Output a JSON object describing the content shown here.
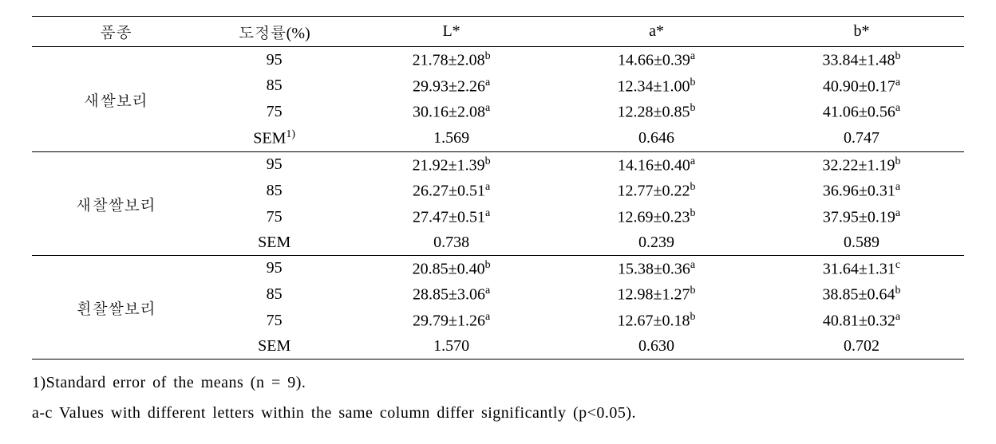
{
  "table": {
    "columns": [
      "품종",
      "도정률(%)",
      "L*",
      "a*",
      "b*"
    ],
    "col_widths_pct": [
      18,
      16,
      22,
      22,
      22
    ],
    "border_color": "#000000",
    "background_color": "#ffffff",
    "fontsize": 20,
    "groups": [
      {
        "label": "새쌀보리",
        "rows": [
          {
            "rate": "95",
            "L": "21.78±2.08",
            "L_sup": "b",
            "a": "14.66±0.39",
            "a_sup": "a",
            "b": "33.84±1.48",
            "b_sup": "b"
          },
          {
            "rate": "85",
            "L": "29.93±2.26",
            "L_sup": "a",
            "a": "12.34±1.00",
            "a_sup": "b",
            "b": "40.90±0.17",
            "b_sup": "a"
          },
          {
            "rate": "75",
            "L": "30.16±2.08",
            "L_sup": "a",
            "a": "12.28±0.85",
            "a_sup": "b",
            "b": "41.06±0.56",
            "b_sup": "a"
          },
          {
            "rate": "SEM",
            "rate_sup": "1)",
            "L": "1.569",
            "L_sup": "",
            "a": "0.646",
            "a_sup": "",
            "b": "0.747",
            "b_sup": ""
          }
        ]
      },
      {
        "label": "새찰쌀보리",
        "rows": [
          {
            "rate": "95",
            "L": "21.92±1.39",
            "L_sup": "b",
            "a": "14.16±0.40",
            "a_sup": "a",
            "b": "32.22±1.19",
            "b_sup": "b"
          },
          {
            "rate": "85",
            "L": "26.27±0.51",
            "L_sup": "a",
            "a": "12.77±0.22",
            "a_sup": "b",
            "b": "36.96±0.31",
            "b_sup": "a"
          },
          {
            "rate": "75",
            "L": "27.47±0.51",
            "L_sup": "a",
            "a": "12.69±0.23",
            "a_sup": "b",
            "b": "37.95±0.19",
            "b_sup": "a"
          },
          {
            "rate": "SEM",
            "L": "0.738",
            "L_sup": "",
            "a": "0.239",
            "a_sup": "",
            "b": "0.589",
            "b_sup": ""
          }
        ]
      },
      {
        "label": "흰찰쌀보리",
        "rows": [
          {
            "rate": "95",
            "L": "20.85±0.40",
            "L_sup": "b",
            "a": "15.38±0.36",
            "a_sup": "a",
            "b": "31.64±1.31",
            "b_sup": "c"
          },
          {
            "rate": "85",
            "L": "28.85±3.06",
            "L_sup": "a",
            "a": "12.98±1.27",
            "a_sup": "b",
            "b": "38.85±0.64",
            "b_sup": "b"
          },
          {
            "rate": "75",
            "L": "29.79±1.26",
            "L_sup": "a",
            "a": "12.67±0.18",
            "a_sup": "b",
            "b": "40.81±0.32",
            "b_sup": "a"
          },
          {
            "rate": "SEM",
            "L": "1.570",
            "L_sup": "",
            "a": "0.630",
            "a_sup": "",
            "b": "0.702",
            "b_sup": ""
          }
        ]
      }
    ]
  },
  "footnotes": {
    "line1": "1)Standard error of the means (n = 9).",
    "line2": "a-c Values with different letters within the same column differ significantly (p<0.05)."
  }
}
